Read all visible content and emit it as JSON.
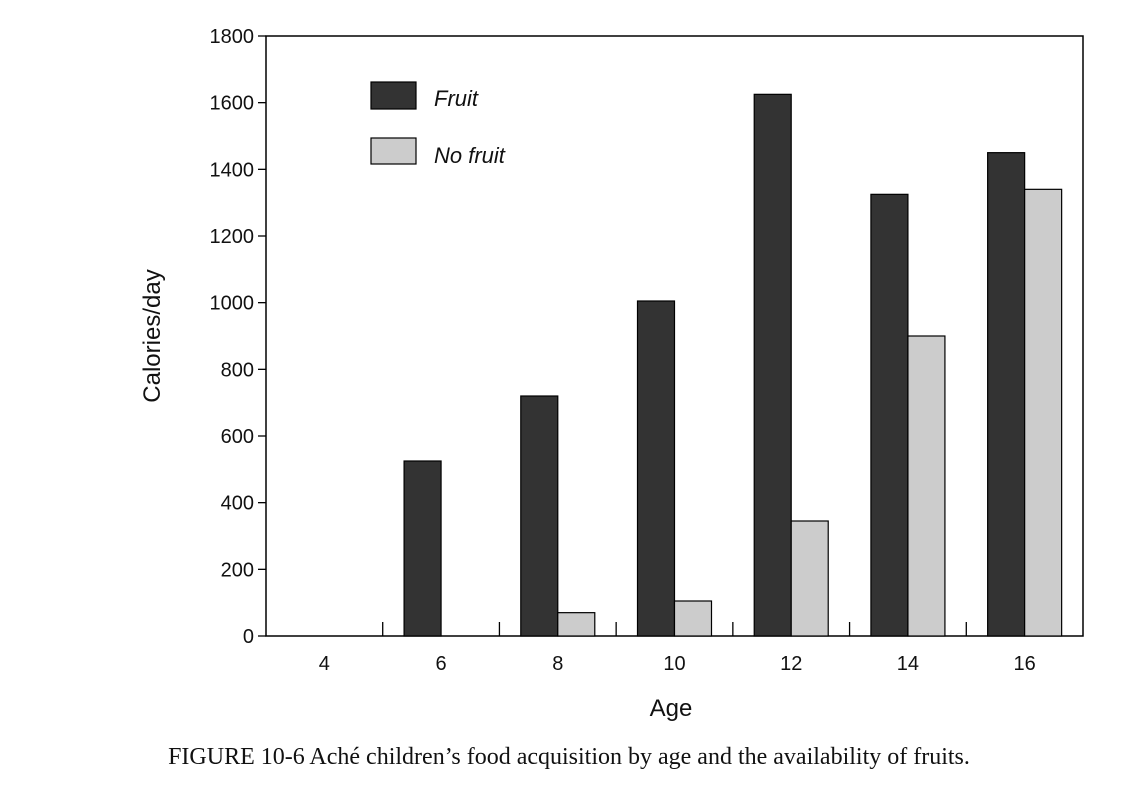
{
  "caption": "FIGURE 10-6  Aché children’s food acquisition by age and the availability of fruits.",
  "colors": {
    "fruit": "#333333",
    "no_fruit": "#cccccc",
    "outline": "#000000"
  },
  "chart_data": {
    "type": "bar",
    "title": "",
    "xlabel": "Age",
    "ylabel": "Calories/day",
    "categories": [
      "4",
      "6",
      "8",
      "10",
      "12",
      "14",
      "16"
    ],
    "ylim": [
      0,
      1800
    ],
    "yticks": [
      0,
      200,
      400,
      600,
      800,
      1000,
      1200,
      1400,
      1600,
      1800
    ],
    "series": [
      {
        "name": "Fruit",
        "values": [
          0,
          525,
          720,
          1005,
          1625,
          1325,
          1450
        ]
      },
      {
        "name": "No fruit",
        "values": [
          0,
          0,
          70,
          105,
          345,
          900,
          1340
        ]
      }
    ],
    "legend_position": "top-left",
    "grid": false
  }
}
